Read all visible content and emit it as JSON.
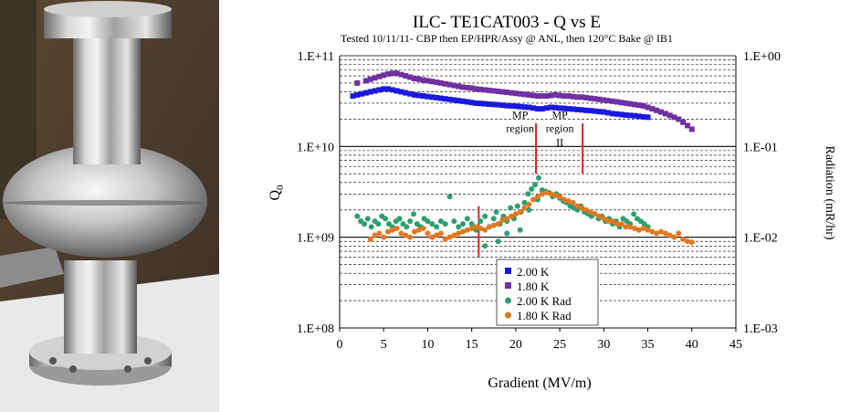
{
  "chart_data": {
    "type": "scatter",
    "title": "ILC- TE1CAT003  - Q vs E",
    "subtitle": "Tested 10/11/11- CBP then EP/HPR/Assy @ ANL, then 120°C Bake @ IB1",
    "xlabel": "Gradient (MV/m)",
    "ylabel_left_main": "Q",
    "ylabel_left_sub": "0",
    "ylabel_right": "Radiation (mR/hr)",
    "xlim": [
      0,
      45
    ],
    "ylim_left": [
      100000000,
      100000000000
    ],
    "ylim_right": [
      0.001,
      1
    ],
    "y_scale": "log",
    "x_ticks": [
      "0",
      "5",
      "10",
      "15",
      "20",
      "25",
      "30",
      "35",
      "40",
      "45"
    ],
    "y_ticks_left": [
      "1.E+08",
      "1.E+09",
      "1.E+10",
      "1.E+11"
    ],
    "y_ticks_right": [
      "1.E-03",
      "1.E-02",
      "1.E-01",
      "1.E+00"
    ],
    "grid": "horizontal dashed minor lines",
    "legend_placement": "bottom-center",
    "annotations": [
      {
        "text_lines": [
          "MP",
          "region"
        ],
        "x": 20.5,
        "y": 17000000000
      },
      {
        "text_lines": [
          "MP",
          "region",
          "II"
        ],
        "x": 25,
        "y": 17000000000
      }
    ],
    "vertical_markers": [
      {
        "x": 15.8,
        "y_range": [
          600000000,
          2200000000
        ],
        "color": "#e02020"
      },
      {
        "x": 22.3,
        "y_range": [
          5000000000,
          18000000000
        ],
        "color": "#e02020"
      },
      {
        "x": 27.6,
        "y_range": [
          5000000000,
          18000000000
        ],
        "color": "#e02020"
      }
    ],
    "series": [
      {
        "name": "2.00 K",
        "axis": "left",
        "marker": "square",
        "color": "#1a1adc",
        "x": [
          1.5,
          2,
          2.5,
          3,
          3.5,
          4,
          4.5,
          5,
          5.5,
          6,
          6.5,
          7,
          7.5,
          8,
          8.5,
          9,
          9.5,
          10,
          10.5,
          11,
          11.5,
          12,
          12.5,
          13,
          13.5,
          14,
          14.5,
          15,
          15.5,
          16,
          16.5,
          17,
          17.5,
          18,
          18.5,
          19,
          19.5,
          20,
          20.5,
          21,
          21.5,
          22,
          22.5,
          23,
          23.5,
          24,
          24.5,
          25,
          25.5,
          26,
          26.5,
          27,
          27.5,
          28,
          28.5,
          29,
          29.5,
          30,
          30.5,
          31,
          31.5,
          32,
          32.5,
          33,
          33.5,
          34,
          34.5,
          35
        ],
        "y": [
          36000000000,
          37000000000,
          38000000000,
          39000000000,
          40000000000,
          41000000000,
          42000000000,
          43000000000,
          43000000000,
          42000000000,
          41000000000,
          40000000000,
          39000000000,
          38000000000,
          37000000000,
          36500000000,
          36000000000,
          35500000000,
          35000000000,
          34500000000,
          34000000000,
          33500000000,
          33000000000,
          32500000000,
          32000000000,
          31500000000,
          31000000000,
          30500000000,
          30000000000,
          29800000000,
          29500000000,
          29200000000,
          29000000000,
          28800000000,
          28500000000,
          28200000000,
          28000000000,
          27800000000,
          27500000000,
          27200000000,
          27000000000,
          26500000000,
          26000000000,
          26000000000,
          26500000000,
          27000000000,
          26800000000,
          26500000000,
          26300000000,
          26000000000,
          25800000000,
          25500000000,
          25300000000,
          25000000000,
          24800000000,
          24500000000,
          24200000000,
          24000000000,
          23500000000,
          23000000000,
          22800000000,
          22500000000,
          22200000000,
          22000000000,
          21800000000,
          21500000000,
          21200000000,
          21000000000
        ]
      },
      {
        "name": "1.80 K",
        "axis": "left",
        "marker": "square",
        "color": "#7030a0",
        "x": [
          2,
          3,
          3.5,
          4,
          4.5,
          5,
          5.5,
          6,
          6.5,
          7,
          7.5,
          8,
          8.5,
          9,
          9.5,
          10,
          10.5,
          11,
          11.5,
          12,
          12.5,
          13,
          13.5,
          14,
          14.5,
          15,
          15.5,
          16,
          16.5,
          17,
          17.5,
          18,
          18.5,
          19,
          19.5,
          20,
          20.5,
          21,
          21.5,
          22,
          22.5,
          23,
          23.5,
          24,
          24.5,
          25,
          25.5,
          26,
          26.5,
          27,
          27.5,
          28,
          28.5,
          29,
          29.5,
          30,
          30.5,
          31,
          31.5,
          32,
          32.5,
          33,
          33.5,
          34,
          34.5,
          35,
          35.5,
          36,
          36.5,
          37,
          37.5,
          38,
          38.5,
          39,
          39.5,
          40
        ],
        "y": [
          50000000000,
          53000000000,
          55000000000,
          57000000000,
          59000000000,
          61000000000,
          63000000000,
          64000000000,
          64000000000,
          62000000000,
          60000000000,
          58000000000,
          56000000000,
          55000000000,
          54000000000,
          53000000000,
          52000000000,
          51000000000,
          50000000000,
          49000000000,
          48000000000,
          47000000000,
          46000000000,
          45000000000,
          44500000000,
          44000000000,
          43000000000,
          42500000000,
          42000000000,
          41500000000,
          41000000000,
          40500000000,
          40000000000,
          39500000000,
          39000000000,
          38500000000,
          38000000000,
          37500000000,
          37000000000,
          36500000000,
          36000000000,
          36000000000,
          36000000000,
          36500000000,
          37000000000,
          36500000000,
          36000000000,
          36000000000,
          35500000000,
          35000000000,
          35000000000,
          34500000000,
          34000000000,
          33500000000,
          33000000000,
          32500000000,
          32000000000,
          31500000000,
          31000000000,
          30500000000,
          30000000000,
          29500000000,
          29000000000,
          28500000000,
          28000000000,
          27000000000,
          26000000000,
          25000000000,
          24000000000,
          23000000000,
          22000000000,
          21000000000,
          20000000000,
          18500000000,
          17000000000,
          15500000000
        ]
      },
      {
        "name": "2.00 K Rad",
        "axis": "right",
        "marker": "circle",
        "color": "#2e9e6e",
        "x": [
          2,
          2.4,
          2.8,
          3.2,
          3.6,
          4,
          4.4,
          4.8,
          5.2,
          5.6,
          6,
          6.4,
          6.8,
          7.2,
          7.6,
          8,
          8.4,
          8.8,
          9.2,
          9.6,
          10,
          10.5,
          11,
          11.5,
          12,
          12.5,
          13,
          13.5,
          14,
          14.5,
          15,
          15.5,
          16,
          16.5,
          17,
          17.5,
          17.8,
          18.2,
          18.6,
          19,
          19.4,
          19.8,
          20.2,
          20.6,
          21,
          21.4,
          21.8,
          22.2,
          22.6,
          23,
          23.4,
          23.8,
          24.2,
          24.6,
          25,
          25.4,
          25.8,
          26.2,
          26.6,
          27,
          27.4,
          27.8,
          28.2,
          28.6,
          29,
          29.4,
          29.8,
          30.2,
          30.6,
          31,
          31.4,
          31.8,
          32.2,
          32.6,
          33,
          33.4,
          33.8,
          34.2,
          34.6,
          35,
          18,
          19,
          20.5,
          21.5,
          22.5,
          16.5
        ],
        "y": [
          0.017,
          0.015,
          0.014,
          0.016,
          0.013,
          0.015,
          0.014,
          0.017,
          0.016,
          0.014,
          0.013,
          0.015,
          0.016,
          0.014,
          0.013,
          0.015,
          0.018,
          0.014,
          0.013,
          0.016,
          0.015,
          0.014,
          0.013,
          0.015,
          0.014,
          0.028,
          0.015,
          0.013,
          0.014,
          0.016,
          0.014,
          0.012,
          0.015,
          0.017,
          0.013,
          0.016,
          0.019,
          0.014,
          0.017,
          0.015,
          0.021,
          0.016,
          0.022,
          0.019,
          0.024,
          0.03,
          0.034,
          0.038,
          0.045,
          0.033,
          0.032,
          0.031,
          0.028,
          0.03,
          0.027,
          0.025,
          0.024,
          0.022,
          0.021,
          0.02,
          0.022,
          0.019,
          0.018,
          0.017,
          0.018,
          0.016,
          0.017,
          0.015,
          0.016,
          0.014,
          0.015,
          0.013,
          0.016,
          0.015,
          0.014,
          0.018,
          0.016,
          0.015,
          0.014,
          0.013,
          0.009,
          0.011,
          0.012,
          0.02,
          0.026,
          0.008
        ]
      },
      {
        "name": "1.80 K Rad",
        "axis": "right",
        "marker": "circle",
        "color": "#e07820",
        "x": [
          3.5,
          4,
          4.5,
          5,
          5.5,
          6,
          6.5,
          7,
          7.5,
          8,
          8.5,
          9,
          9.5,
          10,
          10.5,
          11,
          11.5,
          12,
          12.5,
          13,
          13.5,
          14,
          14.5,
          15,
          15.5,
          16,
          16.5,
          17,
          17.5,
          18,
          18.5,
          19,
          19.5,
          20,
          20.5,
          21,
          21.5,
          22,
          22.5,
          23,
          23.5,
          24,
          24.5,
          25,
          25.5,
          26,
          26.5,
          27,
          27.5,
          28,
          28.5,
          29,
          29.5,
          30,
          30.5,
          31,
          31.5,
          32,
          32.5,
          33,
          33.5,
          34,
          34.5,
          35,
          35.5,
          36,
          36.5,
          37,
          37.5,
          38,
          38.5,
          39,
          39.5,
          40
        ],
        "y": [
          0.0095,
          0.0105,
          0.011,
          0.01,
          0.0115,
          0.012,
          0.0125,
          0.011,
          0.0105,
          0.01,
          0.0115,
          0.012,
          0.0125,
          0.011,
          0.01,
          0.0105,
          0.011,
          0.0095,
          0.01,
          0.0105,
          0.011,
          0.0115,
          0.012,
          0.0125,
          0.013,
          0.0125,
          0.012,
          0.013,
          0.0135,
          0.014,
          0.0155,
          0.016,
          0.017,
          0.018,
          0.019,
          0.021,
          0.023,
          0.026,
          0.028,
          0.03,
          0.031,
          0.03,
          0.029,
          0.028,
          0.026,
          0.025,
          0.024,
          0.022,
          0.021,
          0.02,
          0.019,
          0.018,
          0.017,
          0.016,
          0.015,
          0.015,
          0.014,
          0.014,
          0.013,
          0.013,
          0.0125,
          0.012,
          0.0125,
          0.012,
          0.0115,
          0.011,
          0.0115,
          0.011,
          0.0105,
          0.01,
          0.011,
          0.0095,
          0.009,
          0.0088
        ]
      }
    ]
  }
}
